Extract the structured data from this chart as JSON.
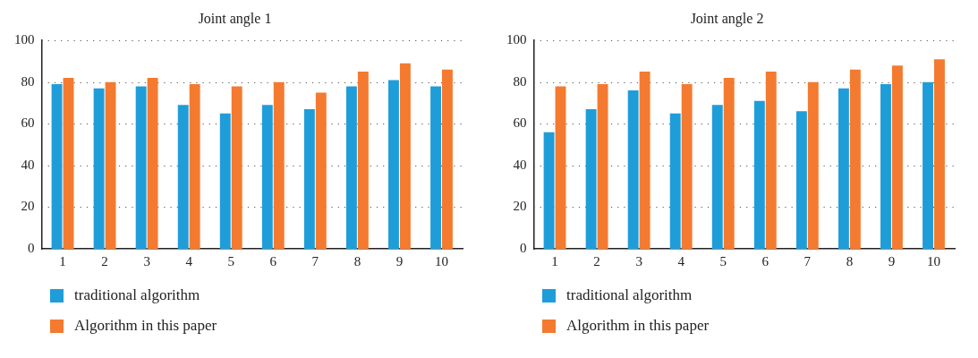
{
  "chart_data": [
    {
      "type": "bar",
      "title": "Joint angle 1",
      "categories": [
        "1",
        "2",
        "3",
        "4",
        "5",
        "6",
        "7",
        "8",
        "9",
        "10"
      ],
      "series": [
        {
          "name": "traditional algorithm",
          "color": "#1f9dd9",
          "values": [
            79,
            77,
            78,
            69,
            65,
            69,
            67,
            78,
            81,
            78
          ]
        },
        {
          "name": "Algorithm in this paper",
          "color": "#f47a30",
          "values": [
            82,
            80,
            82,
            79,
            78,
            80,
            75,
            85,
            89,
            86
          ]
        }
      ],
      "ylim": [
        0,
        100
      ],
      "yticks": [
        0,
        20,
        40,
        60,
        80,
        100
      ],
      "grid": "y",
      "legend": "bottom left"
    },
    {
      "type": "bar",
      "title": "Joint angle 2",
      "categories": [
        "1",
        "2",
        "3",
        "4",
        "5",
        "6",
        "7",
        "8",
        "9",
        "10"
      ],
      "series": [
        {
          "name": "traditional algorithm",
          "color": "#1f9dd9",
          "values": [
            56,
            67,
            76,
            65,
            69,
            71,
            66,
            77,
            79,
            80
          ]
        },
        {
          "name": "Algorithm in this paper",
          "color": "#f47a30",
          "values": [
            78,
            79,
            85,
            79,
            82,
            85,
            80,
            86,
            88,
            91
          ]
        }
      ],
      "ylim": [
        0,
        100
      ],
      "yticks": [
        0,
        20,
        40,
        60,
        80,
        100
      ],
      "grid": "y",
      "legend": "bottom left"
    }
  ]
}
